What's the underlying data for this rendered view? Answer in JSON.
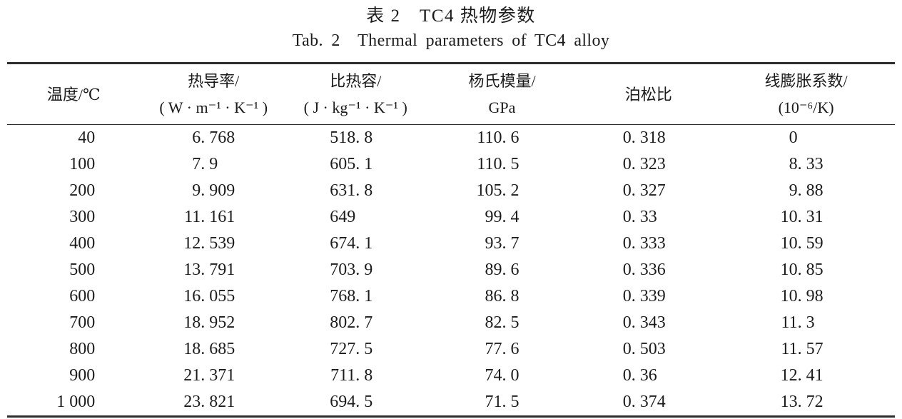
{
  "title": {
    "zh": "表 2　TC4 热物参数",
    "en": "Tab. 2　Thermal parameters of TC4 alloy"
  },
  "chart_data": {
    "type": "table",
    "title_zh": "表 2 TC4 热物参数",
    "title_en": "Tab. 2 Thermal parameters of TC4 alloy",
    "columns": [
      {
        "name": "temperature",
        "header": [
          "温度/℃"
        ]
      },
      {
        "name": "thermal-conductivity",
        "header": [
          "热导率/",
          "( W · m⁻¹ · K⁻¹ )"
        ]
      },
      {
        "name": "specific-heat",
        "header": [
          "比热容/",
          "( J · kg⁻¹ · K⁻¹ )"
        ]
      },
      {
        "name": "youngs-modulus",
        "header": [
          "杨氏模量/",
          "GPa"
        ]
      },
      {
        "name": "poissons-ratio",
        "header": [
          "泊松比"
        ]
      },
      {
        "name": "linear-expansion",
        "header": [
          "线膨胀系数/",
          "(10⁻⁶/K)"
        ]
      }
    ],
    "rows": [
      [
        "40",
        "6. 768",
        "518. 8",
        "110. 6",
        "0. 318",
        "0"
      ],
      [
        "100",
        "7. 9",
        "605. 1",
        "110. 5",
        "0. 323",
        "8. 33"
      ],
      [
        "200",
        "9. 909",
        "631. 8",
        "105. 2",
        "0. 327",
        "9. 88"
      ],
      [
        "300",
        "11. 161",
        "649",
        "99. 4",
        "0. 33",
        "10. 31"
      ],
      [
        "400",
        "12. 539",
        "674. 1",
        "93. 7",
        "0. 333",
        "10. 59"
      ],
      [
        "500",
        "13. 791",
        "703. 9",
        "89. 6",
        "0. 336",
        "10. 85"
      ],
      [
        "600",
        "16. 055",
        "768. 1",
        "86. 8",
        "0. 339",
        "10. 98"
      ],
      [
        "700",
        "18. 952",
        "802. 7",
        "82. 5",
        "0. 343",
        "11. 3"
      ],
      [
        "800",
        "18. 685",
        "727. 5",
        "77. 6",
        "0. 503",
        "11. 57"
      ],
      [
        "900",
        "21. 371",
        "711. 8",
        "74. 0",
        "0. 36",
        "12. 41"
      ],
      [
        "1 000",
        "23. 821",
        "694. 5",
        "71. 5",
        "0. 374",
        "13. 72"
      ]
    ],
    "colors": {
      "text": "#1b1b1b",
      "rule": "#2d2d2d",
      "background": "#ffffff"
    }
  }
}
